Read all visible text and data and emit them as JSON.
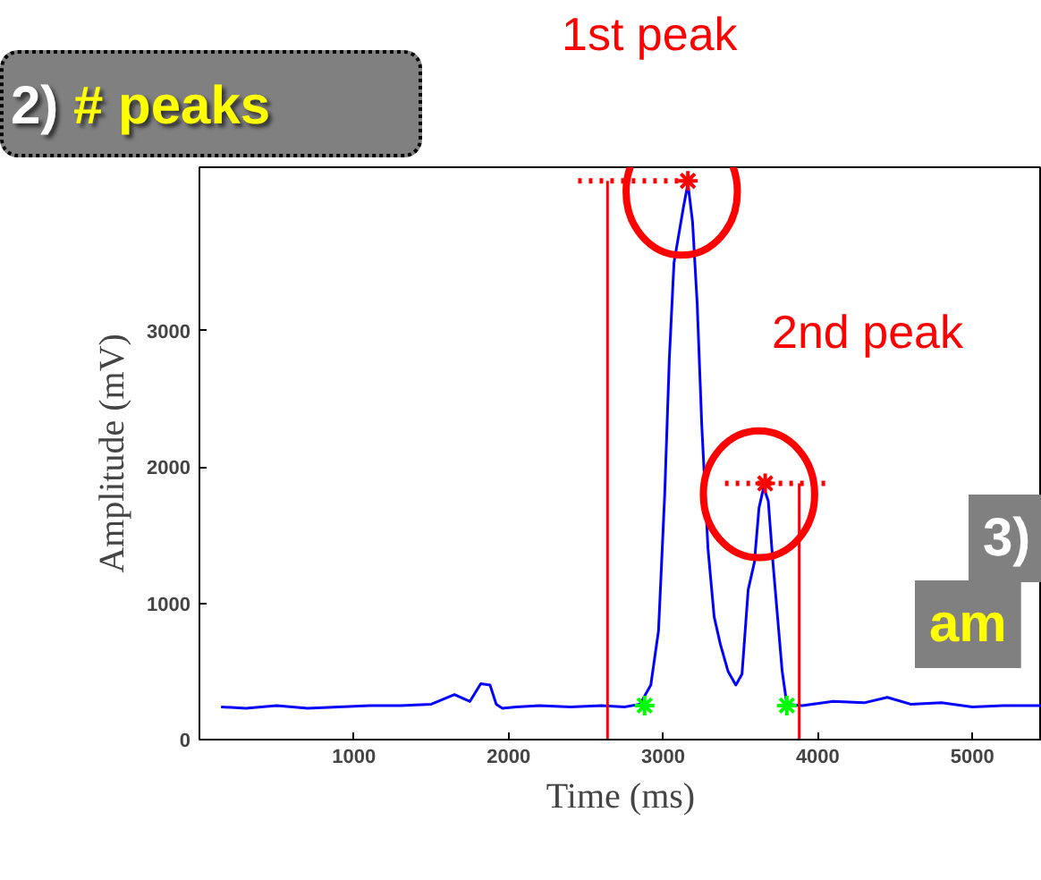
{
  "chart_data": {
    "type": "line",
    "xlabel": "Time (ms)",
    "ylabel": "Amplitude (mV)",
    "xlim": [
      0,
      5450
    ],
    "ylim": [
      0,
      4200
    ],
    "xticks": [
      1000,
      2000,
      3000,
      4000,
      5000
    ],
    "yticks": [
      0,
      1000,
      2000,
      3000
    ],
    "grid": false,
    "series": [
      {
        "color": "#0000ff",
        "x": [
          140,
          300,
          500,
          700,
          900,
          1100,
          1300,
          1500,
          1650,
          1750,
          1820,
          1880,
          1920,
          1960,
          2050,
          2200,
          2400,
          2600,
          2750,
          2850,
          2920,
          2970,
          3010,
          3040,
          3070,
          3100,
          3130,
          3160,
          3190,
          3220,
          3250,
          3290,
          3330,
          3370,
          3420,
          3470,
          3510,
          3550,
          3590,
          3620,
          3650,
          3680,
          3710,
          3740,
          3770,
          3800,
          3900,
          4100,
          4300,
          4450,
          4600,
          4800,
          5000,
          5200,
          5450
        ],
        "values": [
          240,
          230,
          250,
          230,
          240,
          250,
          250,
          260,
          330,
          280,
          410,
          400,
          260,
          230,
          240,
          250,
          240,
          250,
          240,
          260,
          400,
          800,
          1800,
          2800,
          3500,
          3700,
          3900,
          4080,
          3800,
          3200,
          2300,
          1400,
          900,
          700,
          500,
          400,
          480,
          1100,
          1300,
          1700,
          1850,
          1750,
          1300,
          900,
          500,
          260,
          250,
          280,
          270,
          310,
          260,
          270,
          240,
          250,
          250
        ]
      },
      {
        "type": "scatter",
        "color": "#ff0000",
        "marker": "cross",
        "x": [
          3160,
          3660
        ],
        "values": [
          4100,
          1880
        ]
      },
      {
        "type": "scatter",
        "color": "#00ff00",
        "marker": "cross",
        "x": [
          2880,
          3800
        ],
        "values": [
          250,
          250
        ]
      },
      {
        "type": "line",
        "color": "#ff0000",
        "line_style": "dotted",
        "x": [
          2450,
          3160
        ],
        "values": [
          4100,
          4100
        ]
      },
      {
        "type": "line",
        "color": "#ff0000",
        "line_style": "dotted",
        "x": [
          3400,
          4050
        ],
        "values": [
          1880,
          1880
        ]
      },
      {
        "type": "line",
        "color": "#ff0000",
        "x": [
          2640,
          2640
        ],
        "values": [
          0,
          4100
        ]
      },
      {
        "type": "line",
        "color": "#ff0000",
        "x": [
          3880,
          3880
        ],
        "values": [
          0,
          1880
        ]
      }
    ],
    "annotations": [
      "1st peak",
      "2nd peak",
      "2) # peaks",
      "3) am"
    ]
  }
}
